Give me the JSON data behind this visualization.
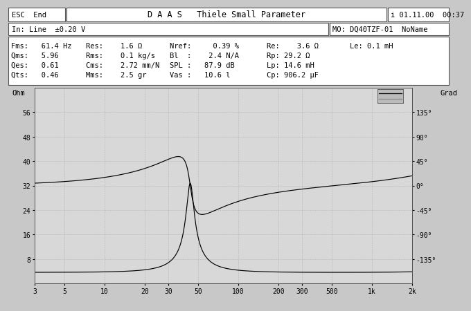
{
  "title": "D A A S   Thiele Small Parameter",
  "header_left": "ESC  End",
  "header_right": "i 01.11.00  00:37",
  "input_line": "In: Line  ±0.20 V",
  "mo_line": "MO: DQ40TZF-01  NoName",
  "params": [
    [
      "Fms:   61.4 Hz",
      "Res:    1.6 Ω",
      "Nref:     0.39 %",
      "Re:    3.6 Ω",
      "Le: 0.1 mH"
    ],
    [
      "Qms:   5.96",
      "Rms:    0.1 kg/s",
      "Bl  :    2.4 N/A",
      "Rp: 29.2 Ω",
      ""
    ],
    [
      "Qes:   0.61",
      "Cms:    2.72 mm/N",
      "SPL :   87.9 dB",
      "Lp: 14.6 mH",
      ""
    ],
    [
      "Qts:   0.46",
      "Mms:    2.5 gr",
      "Vas :   10.6 l",
      "Cp: 906.2 μF",
      ""
    ]
  ],
  "ylabel_left": "Ohm",
  "ylabel_right": "Grad",
  "yticks_left": [
    8,
    16,
    24,
    32,
    40,
    48,
    56
  ],
  "ytick_labels_left": [
    "8",
    "16",
    "24",
    "32",
    "40",
    "48",
    "56"
  ],
  "yticks_right": [
    -135,
    -90,
    -45,
    0,
    45,
    90,
    135
  ],
  "ytick_labels_right": [
    "-135°",
    "-90°",
    "-45°",
    "0°",
    "45°",
    "90°",
    "135°"
  ],
  "xtick_positions": [
    3,
    5,
    10,
    20,
    30,
    50,
    100,
    200,
    300,
    500,
    1000,
    2000
  ],
  "xtick_labels": [
    "3",
    "5",
    "10",
    "20",
    "30",
    "50",
    "100",
    "200",
    "300",
    "500",
    "1k",
    "2k"
  ],
  "xlim": [
    3,
    2000
  ],
  "ylim_left": [
    0,
    64
  ],
  "ylim_right": [
    -180,
    180
  ],
  "Fms": 61.4,
  "Re": 3.6,
  "Qms": 5.96,
  "Qes": 0.61,
  "Rp": 29.2,
  "Le_mH": 0.1,
  "Lp_mH": 14.6,
  "Cp_uF": 906.2,
  "bg_color": "#c8c8c8",
  "plot_bg": "#d8d8d8",
  "grid_color": "#999999",
  "line_color": "#000000",
  "header_bg": "#ffffff",
  "border_color": "#555555"
}
